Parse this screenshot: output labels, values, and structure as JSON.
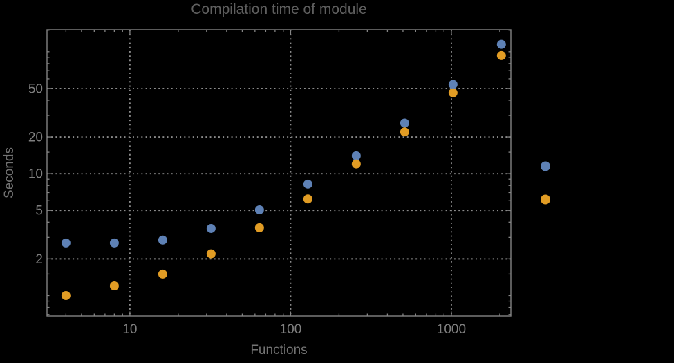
{
  "window": {
    "background": "#000000"
  },
  "colors": {
    "background": "#000000",
    "frame": "#848484",
    "gridlines": "#8c8c8c",
    "tick_labels": "#7f7f7f",
    "axis_labels": "#737373",
    "title": "#5f5f5f",
    "series_blue": "#5e81b5",
    "series_orange": "#e19c24"
  },
  "chart_data": {
    "type": "scatter",
    "title": "Compilation time of module",
    "xlabel": "Functions",
    "ylabel": "Seconds",
    "x_scale": "log",
    "y_scale": "log",
    "xlim": [
      3.05,
      2345
    ],
    "ylim": [
      0.68,
      151.5
    ],
    "grid": "dotted gray lines at major ticks on both axes",
    "frame": "full box frame with inward ticks on all four sides",
    "legend_position": "outside-right, markers only, no visible label text",
    "x_axis": {
      "major_ticks": [
        10,
        100,
        1000
      ],
      "major_tick_labels": [
        "10",
        "100",
        "1000"
      ],
      "minor_ticks": [
        4,
        5,
        6,
        7,
        8,
        9,
        20,
        30,
        40,
        50,
        60,
        70,
        80,
        90,
        200,
        300,
        400,
        500,
        600,
        700,
        800,
        900,
        2000
      ]
    },
    "y_axis": {
      "major_ticks": [
        2,
        5,
        10,
        20,
        50
      ],
      "major_tick_labels": [
        "2",
        "5",
        "10",
        "20",
        "50"
      ],
      "minor_ticks": [
        0.7,
        0.8,
        0.9,
        1,
        1.5,
        3,
        4,
        6,
        7,
        8,
        9,
        15,
        30,
        40,
        60,
        70,
        80,
        90,
        100,
        150
      ]
    },
    "x": [
      4,
      8,
      16,
      32,
      64,
      128,
      256,
      512,
      1024,
      2048
    ],
    "series": [
      {
        "name": "blue-series",
        "color": "#5e81b5",
        "values": [
          2.7,
          2.7,
          2.85,
          3.55,
          5.05,
          8.2,
          14,
          26,
          54,
          115
        ]
      },
      {
        "name": "orange-series",
        "color": "#e19c24",
        "values": [
          1.0,
          1.2,
          1.5,
          2.2,
          3.6,
          6.2,
          12,
          22,
          46,
          93
        ]
      }
    ],
    "legend_markers": [
      {
        "series": "blue-series",
        "color": "#5e81b5"
      },
      {
        "series": "orange-series",
        "color": "#e19c24"
      }
    ]
  }
}
